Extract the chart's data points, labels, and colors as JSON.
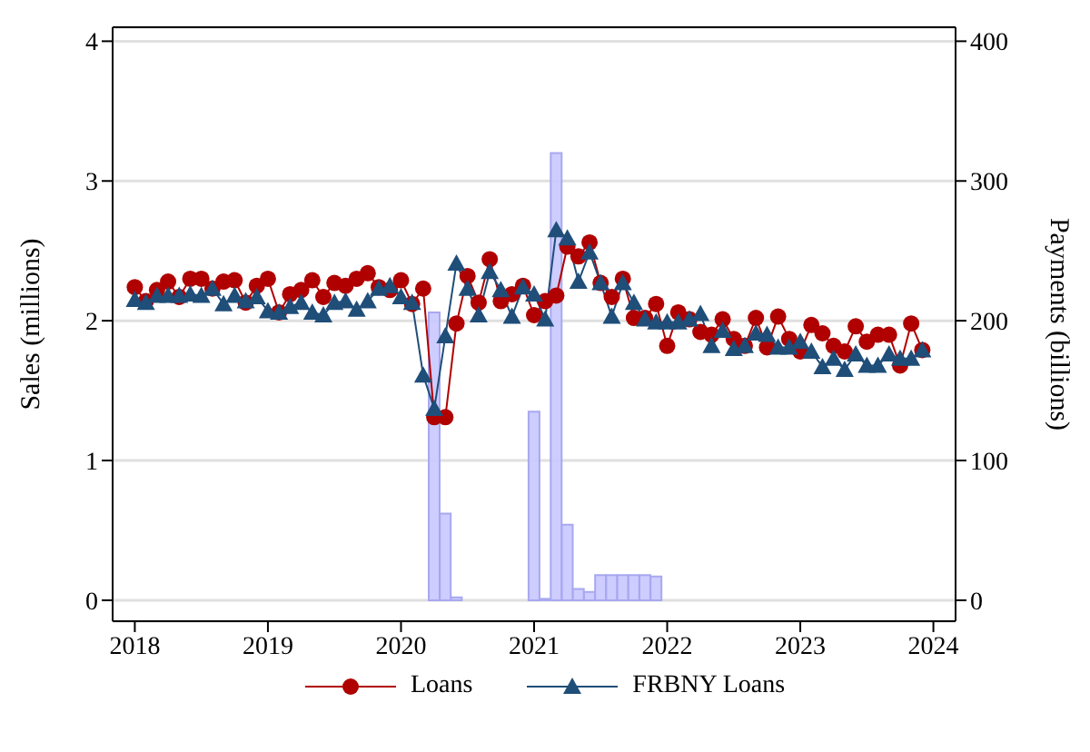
{
  "chart_data": {
    "type": "line",
    "ylabel": "Sales (millions)",
    "y2label": "Payments (billions)",
    "x": [
      "2018-01",
      "2018-02",
      "2018-03",
      "2018-04",
      "2018-05",
      "2018-06",
      "2018-07",
      "2018-08",
      "2018-09",
      "2018-10",
      "2018-11",
      "2018-12",
      "2019-01",
      "2019-02",
      "2019-03",
      "2019-04",
      "2019-05",
      "2019-06",
      "2019-07",
      "2019-08",
      "2019-09",
      "2019-10",
      "2019-11",
      "2019-12",
      "2020-01",
      "2020-02",
      "2020-03",
      "2020-04",
      "2020-05",
      "2020-06",
      "2020-07",
      "2020-08",
      "2020-09",
      "2020-10",
      "2020-11",
      "2020-12",
      "2021-01",
      "2021-02",
      "2021-03",
      "2021-04",
      "2021-05",
      "2021-06",
      "2021-07",
      "2021-08",
      "2021-09",
      "2021-10",
      "2021-11",
      "2021-12",
      "2022-01",
      "2022-02",
      "2022-03",
      "2022-04",
      "2022-05",
      "2022-06",
      "2022-07",
      "2022-08",
      "2022-09",
      "2022-10",
      "2022-11",
      "2022-12",
      "2023-01",
      "2023-02",
      "2023-03",
      "2023-04",
      "2023-05",
      "2023-06",
      "2023-07",
      "2023-08",
      "2023-09",
      "2023-10",
      "2023-11",
      "2023-12"
    ],
    "series": [
      {
        "type": "bar",
        "axis": "y2",
        "color": "#c8c8ff",
        "values": [
          null,
          null,
          null,
          null,
          null,
          null,
          null,
          null,
          null,
          null,
          null,
          null,
          null,
          null,
          null,
          null,
          null,
          null,
          null,
          null,
          null,
          null,
          null,
          null,
          null,
          null,
          null,
          206,
          62,
          2,
          null,
          null,
          null,
          null,
          null,
          null,
          135,
          1,
          320,
          54,
          8,
          6,
          18,
          18,
          18,
          18,
          18,
          17,
          null,
          null,
          null,
          null,
          null,
          null,
          null,
          null,
          null,
          null,
          null,
          null,
          null,
          null,
          null,
          null,
          null,
          null,
          null,
          null,
          null,
          null,
          null,
          null
        ]
      },
      {
        "name": "Loans",
        "color": "#b00000",
        "marker": "circle",
        "values": [
          2.24,
          2.14,
          2.22,
          2.28,
          2.17,
          2.3,
          2.3,
          2.23,
          2.28,
          2.29,
          2.13,
          2.25,
          2.3,
          2.06,
          2.19,
          2.22,
          2.29,
          2.17,
          2.27,
          2.25,
          2.3,
          2.34,
          2.24,
          2.22,
          2.29,
          2.12,
          2.23,
          1.31,
          1.31,
          1.98,
          2.32,
          2.13,
          2.44,
          2.14,
          2.19,
          2.25,
          2.04,
          2.14,
          2.18,
          2.53,
          2.46,
          2.56,
          2.27,
          2.17,
          2.3,
          2.02,
          2.02,
          2.12,
          1.82,
          2.06,
          2.01,
          1.92,
          1.9,
          2.01,
          1.87,
          1.82,
          2.02,
          1.81,
          2.03,
          1.87,
          1.78,
          1.97,
          1.91,
          1.82,
          1.78,
          1.96,
          1.85,
          1.9,
          1.9,
          1.68,
          1.98,
          1.79
        ]
      },
      {
        "name": "FRBNY Loans",
        "color": "#1f4e79",
        "marker": "triangle",
        "values": [
          2.15,
          2.13,
          2.18,
          2.18,
          2.18,
          2.19,
          2.18,
          2.23,
          2.12,
          2.18,
          2.14,
          2.17,
          2.07,
          2.06,
          2.1,
          2.13,
          2.06,
          2.04,
          2.13,
          2.14,
          2.08,
          2.14,
          2.23,
          2.25,
          2.17,
          2.13,
          1.61,
          1.37,
          1.89,
          2.41,
          2.23,
          2.04,
          2.35,
          2.22,
          2.03,
          2.24,
          2.19,
          2.01,
          2.65,
          2.59,
          2.28,
          2.49,
          2.27,
          2.03,
          2.27,
          2.13,
          2.01,
          1.99,
          1.99,
          1.99,
          2.01,
          2.05,
          1.82,
          1.93,
          1.8,
          1.82,
          1.91,
          1.9,
          1.81,
          1.81,
          1.85,
          1.78,
          1.67,
          1.73,
          1.65,
          1.76,
          1.68,
          1.68,
          1.76,
          1.73,
          1.73,
          1.79
        ]
      }
    ],
    "xlim": [
      "2017-11",
      "2024-03"
    ],
    "xticks": [
      "2018",
      "2019",
      "2020",
      "2021",
      "2022",
      "2023",
      "2024"
    ],
    "ylim": [
      -0.15,
      4.1
    ],
    "yticks": [
      0,
      1,
      2,
      3,
      4
    ],
    "y2lim": [
      -15,
      410
    ],
    "y2ticks": [
      0,
      100,
      200,
      300,
      400
    ],
    "grid": "y",
    "legend": "bottom"
  }
}
